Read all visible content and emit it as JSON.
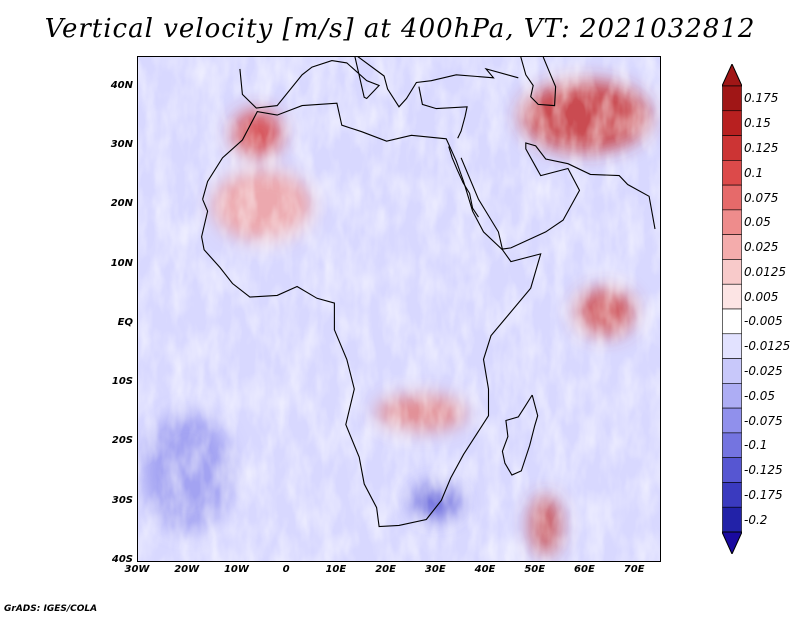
{
  "title": "Vertical velocity [m/s] at 400hPa, VT: 2021032812",
  "credit": "GrADS: IGES/COLA",
  "map": {
    "region": "Africa",
    "lon_range": [
      -30,
      75
    ],
    "lat_range": [
      -40,
      45
    ],
    "lat_ticks": [
      {
        "value": 40,
        "label": "40N"
      },
      {
        "value": 30,
        "label": "30N"
      },
      {
        "value": 20,
        "label": "20N"
      },
      {
        "value": 10,
        "label": "10N"
      },
      {
        "value": 0,
        "label": "EQ"
      },
      {
        "value": -10,
        "label": "10S"
      },
      {
        "value": -20,
        "label": "20S"
      },
      {
        "value": -30,
        "label": "30S"
      },
      {
        "value": -40,
        "label": "40S"
      }
    ],
    "lon_ticks": [
      {
        "value": -30,
        "label": "30W"
      },
      {
        "value": -20,
        "label": "20W"
      },
      {
        "value": -10,
        "label": "10W"
      },
      {
        "value": 0,
        "label": "0"
      },
      {
        "value": 10,
        "label": "10E"
      },
      {
        "value": 20,
        "label": "20E"
      },
      {
        "value": 30,
        "label": "30E"
      },
      {
        "value": 40,
        "label": "40E"
      },
      {
        "value": 50,
        "label": "50E"
      },
      {
        "value": 60,
        "label": "60E"
      },
      {
        "value": 70,
        "label": "70E"
      }
    ],
    "colors": {
      "background": "#d8d8ff",
      "coastline": "#000000"
    },
    "features": [
      {
        "name": "himalaya-updraft",
        "lon": 60,
        "lat": 35,
        "rlon": 13,
        "rlat": 6,
        "color": "#c83232"
      },
      {
        "name": "arabian-sea-updraft",
        "lon": 64,
        "lat": 2,
        "rlon": 6,
        "rlat": 4,
        "color": "#d04848"
      },
      {
        "name": "morocco-updraft",
        "lon": -6,
        "lat": 32,
        "rlon": 5,
        "rlat": 4,
        "color": "#d84040"
      },
      {
        "name": "south-africa-updraft",
        "lon": 27,
        "lat": -15,
        "rlon": 9,
        "rlat": 3,
        "color": "#e48080"
      },
      {
        "name": "madagascar-east-updraft",
        "lon": 52,
        "lat": -34,
        "rlon": 3,
        "rlat": 5,
        "color": "#c84040"
      },
      {
        "name": "sahara-updraft",
        "lon": -5,
        "lat": 20,
        "rlon": 10,
        "rlat": 6,
        "color": "#f0a0a0"
      },
      {
        "name": "atlantic-subsidence",
        "lon": -20,
        "lat": -25,
        "rlon": 9,
        "rlat": 10,
        "color": "#9a9af0"
      },
      {
        "name": "southern-africa-subsidence",
        "lon": 30,
        "lat": -30,
        "rlon": 5,
        "rlat": 3,
        "color": "#6060d8"
      }
    ]
  },
  "colorbar": {
    "levels": [
      {
        "value": "0.175",
        "color": "#a01616"
      },
      {
        "value": "0.15",
        "color": "#b82020"
      },
      {
        "value": "0.125",
        "color": "#cc3434"
      },
      {
        "value": "0.1",
        "color": "#dc4a4a"
      },
      {
        "value": "0.075",
        "color": "#e66a6a"
      },
      {
        "value": "0.05",
        "color": "#ee8c8c"
      },
      {
        "value": "0.025",
        "color": "#f4acac"
      },
      {
        "value": "0.0125",
        "color": "#f8caca"
      },
      {
        "value": "0.005",
        "color": "#fce4e4"
      },
      {
        "value": "-0.005",
        "color": "#ffffff"
      },
      {
        "value": "-0.0125",
        "color": "#e2e2ff"
      },
      {
        "value": "-0.025",
        "color": "#c8c8fa"
      },
      {
        "value": "-0.05",
        "color": "#adadf4"
      },
      {
        "value": "-0.075",
        "color": "#9090ec"
      },
      {
        "value": "-0.1",
        "color": "#7474e0"
      },
      {
        "value": "-0.125",
        "color": "#5656d2"
      },
      {
        "value": "-0.175",
        "color": "#3a3abf"
      },
      {
        "value": "-0.2",
        "color": "#2222a8"
      }
    ],
    "top_arrow_color": "#a01616",
    "bottom_arrow_color": "#1a0aa0"
  }
}
